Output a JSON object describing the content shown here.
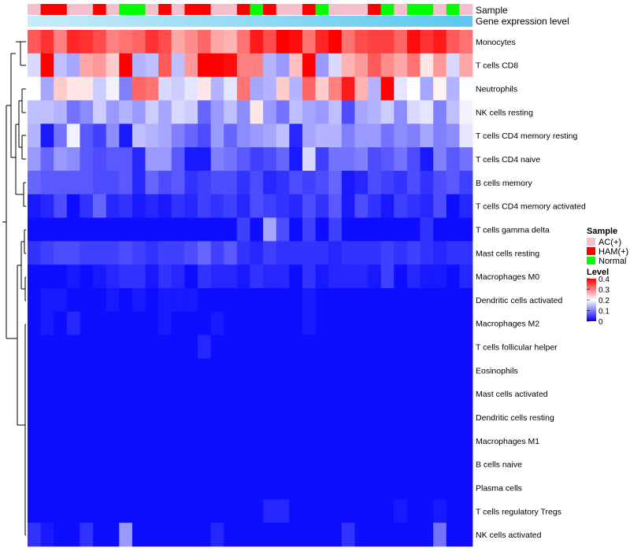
{
  "chart_data": {
    "type": "heatmap",
    "title": "",
    "annotation_labels": {
      "sample": "Sample",
      "gene_expression": "Gene expression level"
    },
    "rows": [
      "Monocytes",
      "T cells CD8",
      "Neutrophils",
      "NK cells resting",
      "T cells CD4 memory resting",
      "T cells CD4 naive",
      "B cells memory",
      "T cells CD4 memory activated",
      "T cells gamma delta",
      "Mast cells resting",
      "Macrophages M0",
      "Dendritic cells activated",
      "Macrophages M2",
      "T cells follicular helper",
      "Eosinophils",
      "Mast cells activated",
      "Dendritic cells resting",
      "Macrophages M1",
      "B cells naive",
      "Plasma cells",
      "T cells regulatory  Tregs",
      "NK cells activated"
    ],
    "sample_groups": [
      "AC(+)",
      "HAM(+)",
      "HAM(+)",
      "AC(+)",
      "AC(+)",
      "HAM(+)",
      "AC(+)",
      "Normal",
      "Normal",
      "AC(+)",
      "HAM(+)",
      "AC(+)",
      "HAM(+)",
      "HAM(+)",
      "AC(+)",
      "AC(+)",
      "HAM(+)",
      "Normal",
      "HAM(+)",
      "AC(+)",
      "AC(+)",
      "HAM(+)",
      "Normal",
      "AC(+)",
      "AC(+)",
      "AC(+)",
      "HAM(+)",
      "Normal",
      "AC(+)",
      "Normal",
      "Normal",
      "AC(+)",
      "Normal",
      "AC(+)"
    ],
    "values": [
      [
        0.33,
        0.36,
        0.3,
        0.37,
        0.36,
        0.34,
        0.3,
        0.31,
        0.32,
        0.36,
        0.34,
        0.27,
        0.29,
        0.32,
        0.27,
        0.26,
        0.31,
        0.38,
        0.34,
        0.4,
        0.39,
        0.31,
        0.37,
        0.4,
        0.31,
        0.34,
        0.35,
        0.35,
        0.32,
        0.39,
        0.36,
        0.38,
        0.33,
        0.31
      ],
      [
        0.17,
        0.4,
        0.15,
        0.13,
        0.27,
        0.28,
        0.24,
        0.4,
        0.14,
        0.15,
        0.33,
        0.15,
        0.28,
        0.4,
        0.4,
        0.39,
        0.3,
        0.3,
        0.14,
        0.12,
        0.25,
        0.4,
        0.12,
        0.17,
        0.26,
        0.28,
        0.33,
        0.29,
        0.27,
        0.31,
        0.22,
        0.28,
        0.17,
        0.27
      ],
      [
        0.2,
        0.13,
        0.24,
        0.22,
        0.22,
        0.16,
        0.19,
        0.1,
        0.32,
        0.31,
        0.17,
        0.16,
        0.18,
        0.22,
        0.14,
        0.18,
        0.31,
        0.13,
        0.14,
        0.24,
        0.14,
        0.32,
        0.24,
        0.3,
        0.38,
        0.26,
        0.14,
        0.4,
        0.18,
        0.2,
        0.13,
        0.21,
        0.14,
        0.2
      ],
      [
        0.15,
        0.15,
        0.14,
        0.09,
        0.11,
        0.16,
        0.12,
        0.14,
        0.12,
        0.16,
        0.13,
        0.17,
        0.16,
        0.08,
        0.12,
        0.15,
        0.11,
        0.22,
        0.12,
        0.09,
        0.15,
        0.13,
        0.12,
        0.15,
        0.06,
        0.13,
        0.14,
        0.16,
        0.11,
        0.17,
        0.18,
        0.1,
        0.15,
        0.19
      ],
      [
        0.14,
        0.02,
        0.09,
        0.19,
        0.07,
        0.05,
        0.11,
        0.02,
        0.15,
        0.14,
        0.13,
        0.1,
        0.08,
        0.06,
        0.12,
        0.08,
        0.11,
        0.12,
        0.13,
        0.15,
        0.03,
        0.13,
        0.14,
        0.14,
        0.1,
        0.12,
        0.12,
        0.09,
        0.11,
        0.1,
        0.13,
        0.1,
        0.11,
        0.18
      ],
      [
        0.12,
        0.08,
        0.12,
        0.11,
        0.07,
        0.06,
        0.07,
        0.07,
        0.03,
        0.12,
        0.12,
        0.07,
        0.02,
        0.02,
        0.1,
        0.09,
        0.07,
        0.05,
        0.06,
        0.08,
        0.02,
        0.17,
        0.05,
        0.09,
        0.09,
        0.1,
        0.06,
        0.07,
        0.09,
        0.06,
        0.02,
        0.1,
        0.07,
        0.09
      ],
      [
        0.08,
        0.07,
        0.07,
        0.07,
        0.07,
        0.06,
        0.06,
        0.07,
        0.03,
        0.08,
        0.06,
        0.07,
        0.04,
        0.05,
        0.06,
        0.06,
        0.04,
        0.06,
        0.03,
        0.04,
        0.06,
        0.05,
        0.06,
        0.08,
        0.02,
        0.03,
        0.06,
        0.05,
        0.04,
        0.06,
        0.04,
        0.06,
        0.07,
        0.05
      ],
      [
        0.02,
        0.03,
        0.06,
        0.01,
        0.04,
        0.08,
        0.03,
        0.04,
        0.02,
        0.03,
        0.02,
        0.04,
        0.03,
        0.05,
        0.04,
        0.05,
        0.03,
        0.06,
        0.05,
        0.04,
        0.03,
        0.06,
        0.04,
        0.07,
        0.02,
        0.06,
        0.04,
        0.02,
        0.05,
        0.04,
        0.03,
        0.06,
        0.01,
        0.03
      ],
      [
        0.01,
        0.01,
        0.01,
        0.01,
        0.01,
        0.01,
        0.01,
        0.01,
        0.01,
        0.01,
        0.01,
        0.01,
        0.01,
        0.01,
        0.01,
        0.01,
        0.05,
        0.01,
        0.13,
        0.06,
        0.01,
        0.05,
        0.01,
        0.05,
        0.01,
        0.01,
        0.01,
        0.01,
        0.01,
        0.01,
        0.04,
        0.01,
        0.01,
        0.01
      ],
      [
        0.04,
        0.05,
        0.06,
        0.06,
        0.05,
        0.05,
        0.05,
        0.06,
        0.05,
        0.04,
        0.05,
        0.05,
        0.06,
        0.08,
        0.05,
        0.07,
        0.04,
        0.03,
        0.05,
        0.04,
        0.04,
        0.04,
        0.04,
        0.03,
        0.04,
        0.04,
        0.04,
        0.05,
        0.04,
        0.05,
        0.04,
        0.03,
        0.04,
        0.04
      ],
      [
        0.01,
        0.01,
        0.01,
        0.02,
        0.01,
        0.02,
        0.03,
        0.04,
        0.04,
        0.02,
        0.04,
        0.03,
        0.01,
        0.04,
        0.03,
        0.03,
        0.02,
        0.04,
        0.03,
        0.03,
        0.01,
        0.04,
        0.02,
        0.03,
        0.03,
        0.03,
        0.02,
        0.05,
        0.01,
        0.03,
        0.02,
        0.02,
        0.01,
        0.03
      ],
      [
        0.01,
        0.02,
        0.02,
        0.01,
        0.01,
        0.01,
        0.02,
        0.01,
        0.02,
        0.01,
        0.02,
        0.02,
        0.02,
        0.01,
        0.01,
        0.01,
        0.01,
        0.01,
        0.01,
        0.01,
        0.01,
        0.02,
        0.01,
        0.01,
        0.01,
        0.01,
        0.01,
        0.01,
        0.01,
        0.01,
        0.01,
        0.01,
        0.01,
        0.01
      ],
      [
        0.01,
        0.02,
        0.01,
        0.03,
        0.01,
        0.01,
        0.01,
        0.01,
        0.01,
        0.01,
        0.02,
        0.01,
        0.01,
        0.01,
        0.02,
        0.01,
        0.01,
        0.01,
        0.01,
        0.01,
        0.01,
        0.02,
        0.01,
        0.01,
        0.01,
        0.01,
        0.01,
        0.01,
        0.01,
        0.01,
        0.01,
        0.01,
        0.01,
        0.01
      ],
      [
        0.01,
        0.01,
        0.01,
        0.01,
        0.01,
        0.01,
        0.01,
        0.01,
        0.01,
        0.01,
        0.01,
        0.01,
        0.01,
        0.03,
        0.01,
        0.01,
        0.01,
        0.01,
        0.01,
        0.01,
        0.01,
        0.01,
        0.01,
        0.01,
        0.01,
        0.01,
        0.01,
        0.01,
        0.01,
        0.01,
        0.01,
        0.01,
        0.01,
        0.01
      ],
      [
        0.01,
        0.01,
        0.01,
        0.01,
        0.01,
        0.01,
        0.01,
        0.01,
        0.01,
        0.01,
        0.01,
        0.01,
        0.01,
        0.01,
        0.01,
        0.01,
        0.01,
        0.01,
        0.01,
        0.01,
        0.01,
        0.01,
        0.01,
        0.01,
        0.01,
        0.01,
        0.01,
        0.01,
        0.01,
        0.01,
        0.01,
        0.01,
        0.01,
        0.01
      ],
      [
        0.01,
        0.01,
        0.01,
        0.01,
        0.01,
        0.01,
        0.01,
        0.01,
        0.01,
        0.01,
        0.01,
        0.01,
        0.01,
        0.01,
        0.01,
        0.01,
        0.01,
        0.01,
        0.01,
        0.01,
        0.01,
        0.01,
        0.01,
        0.01,
        0.01,
        0.01,
        0.01,
        0.01,
        0.01,
        0.01,
        0.01,
        0.01,
        0.01,
        0.01
      ],
      [
        0.01,
        0.01,
        0.01,
        0.01,
        0.01,
        0.01,
        0.01,
        0.01,
        0.01,
        0.01,
        0.01,
        0.01,
        0.01,
        0.01,
        0.01,
        0.01,
        0.01,
        0.01,
        0.01,
        0.01,
        0.01,
        0.01,
        0.01,
        0.01,
        0.01,
        0.01,
        0.01,
        0.01,
        0.01,
        0.01,
        0.01,
        0.01,
        0.01,
        0.01
      ],
      [
        0.01,
        0.01,
        0.01,
        0.01,
        0.01,
        0.01,
        0.01,
        0.01,
        0.01,
        0.01,
        0.01,
        0.01,
        0.01,
        0.01,
        0.01,
        0.01,
        0.01,
        0.01,
        0.01,
        0.01,
        0.01,
        0.01,
        0.01,
        0.01,
        0.01,
        0.01,
        0.01,
        0.01,
        0.01,
        0.01,
        0.01,
        0.01,
        0.01,
        0.01
      ],
      [
        0.01,
        0.01,
        0.01,
        0.01,
        0.01,
        0.01,
        0.01,
        0.01,
        0.01,
        0.01,
        0.01,
        0.01,
        0.01,
        0.01,
        0.01,
        0.01,
        0.01,
        0.01,
        0.01,
        0.01,
        0.01,
        0.01,
        0.01,
        0.01,
        0.01,
        0.01,
        0.01,
        0.01,
        0.01,
        0.01,
        0.01,
        0.01,
        0.01,
        0.01
      ],
      [
        0.01,
        0.01,
        0.01,
        0.01,
        0.01,
        0.01,
        0.01,
        0.01,
        0.01,
        0.01,
        0.01,
        0.01,
        0.01,
        0.01,
        0.01,
        0.01,
        0.01,
        0.01,
        0.01,
        0.01,
        0.01,
        0.01,
        0.01,
        0.01,
        0.01,
        0.01,
        0.01,
        0.01,
        0.01,
        0.01,
        0.01,
        0.01,
        0.01,
        0.01
      ],
      [
        0.01,
        0.01,
        0.01,
        0.01,
        0.01,
        0.01,
        0.01,
        0.01,
        0.01,
        0.01,
        0.01,
        0.01,
        0.01,
        0.01,
        0.01,
        0.01,
        0.01,
        0.01,
        0.03,
        0.03,
        0.01,
        0.01,
        0.01,
        0.01,
        0.01,
        0.01,
        0.01,
        0.01,
        0.02,
        0.01,
        0.01,
        0.02,
        0.01,
        0.01
      ],
      [
        0.04,
        0.02,
        0.01,
        0.01,
        0.04,
        0.01,
        0.01,
        0.12,
        0.01,
        0.01,
        0.01,
        0.01,
        0.01,
        0.01,
        0.03,
        0.01,
        0.01,
        0.01,
        0.01,
        0.01,
        0.01,
        0.01,
        0.01,
        0.01,
        0.04,
        0.01,
        0.01,
        0.01,
        0.01,
        0.01,
        0.01,
        0.09,
        0.01,
        0.01
      ]
    ],
    "legend_sample": {
      "title": "Sample",
      "entries": [
        {
          "label": "AC(+)",
          "color": "#F5C0CB"
        },
        {
          "label": "HAM(+)",
          "color": "#FF0000"
        },
        {
          "label": "Normal",
          "color": "#00FF00"
        }
      ]
    },
    "legend_level": {
      "title": "Level",
      "ticks": [
        "0.4",
        "0.3",
        "0.2",
        "0.1",
        "0"
      ],
      "tick_values": [
        0.4,
        0.3,
        0.2,
        0.1,
        0
      ],
      "range": [
        0,
        0.4
      ]
    },
    "colors": {
      "low": "#0000FF",
      "mid": "#FFFFFF",
      "high": "#FF0000",
      "gene_expression_bar": "#5BC8F0",
      "gene_expression_bar_light": "#C8ECFA"
    }
  }
}
